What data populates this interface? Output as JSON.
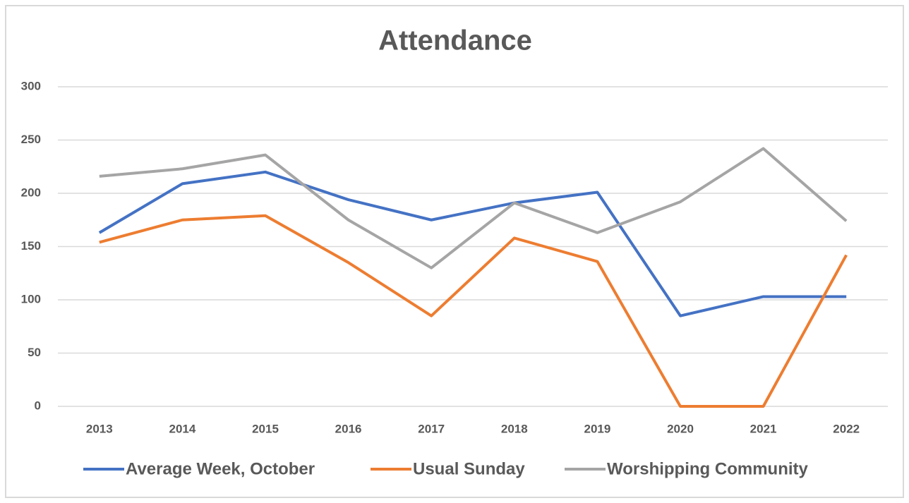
{
  "chart_data": {
    "type": "line",
    "title": "Attendance",
    "categories": [
      "2013",
      "2014",
      "2015",
      "2016",
      "2017",
      "2018",
      "2019",
      "2020",
      "2021",
      "2022"
    ],
    "series": [
      {
        "name": "Average Week, October",
        "color": "#4472c4",
        "values": [
          163,
          209,
          220,
          194,
          175,
          191,
          201,
          85,
          103,
          103
        ]
      },
      {
        "name": "Usual Sunday",
        "color": "#ed7d31",
        "values": [
          154,
          175,
          179,
          135,
          85,
          158,
          136,
          0,
          0,
          142
        ]
      },
      {
        "name": "Worshipping Community",
        "color": "#a5a5a5",
        "values": [
          216,
          223,
          236,
          175,
          130,
          191,
          163,
          192,
          242,
          174
        ]
      }
    ],
    "ylim": [
      0,
      300
    ],
    "yticks": [
      0,
      50,
      100,
      150,
      200,
      250,
      300
    ],
    "grid": true,
    "legend": "bottom"
  }
}
